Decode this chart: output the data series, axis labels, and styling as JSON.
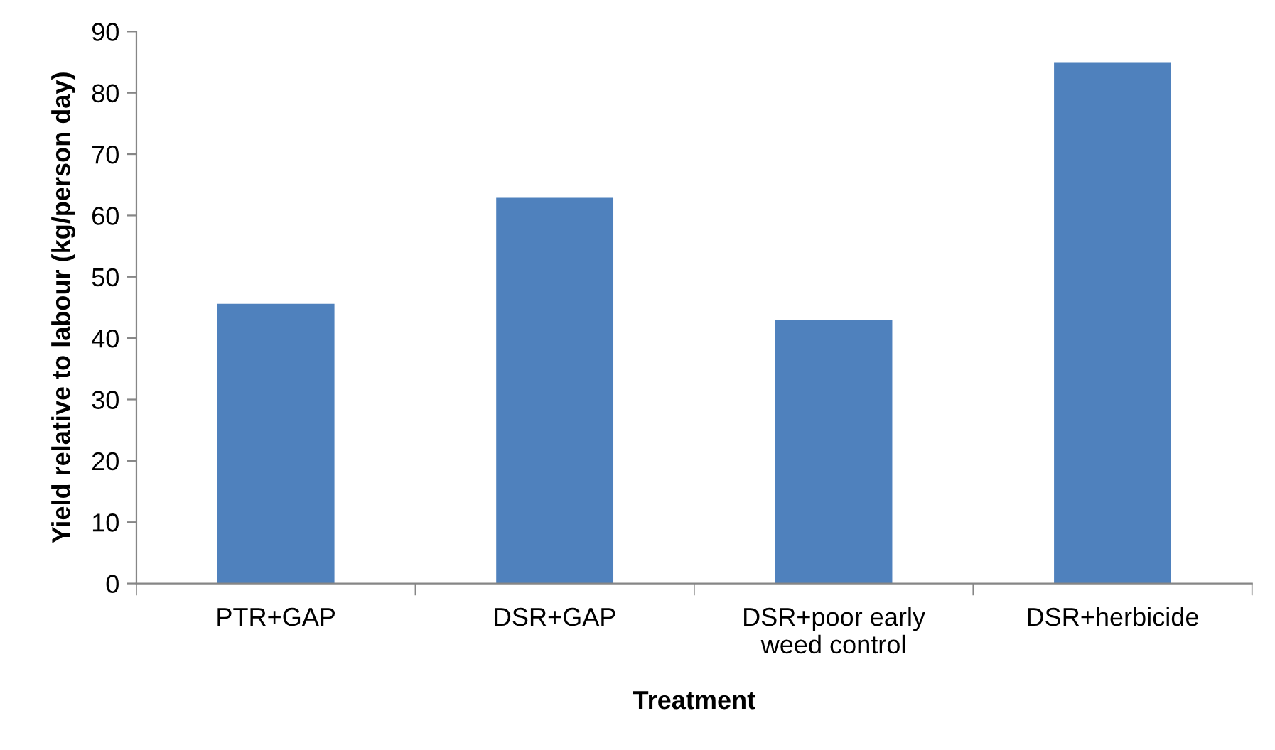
{
  "chart_data": {
    "type": "bar",
    "xlabel": "Treatment",
    "ylabel": "Yield relative to labour (kg/person day)",
    "categories": [
      "PTR+GAP",
      "DSR+GAP",
      "DSR+poor early\nweed control",
      "DSR+herbicide"
    ],
    "values": [
      45.6,
      62.9,
      43.0,
      84.9
    ],
    "color": "#4f81bd",
    "ylim": [
      0,
      90
    ],
    "yticks": [
      0,
      10,
      20,
      30,
      40,
      50,
      60,
      70,
      80,
      90
    ],
    "grid": false,
    "legend": false
  }
}
